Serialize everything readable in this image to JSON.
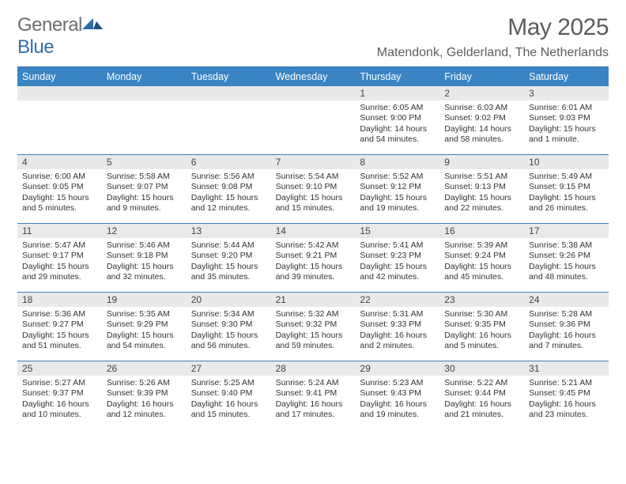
{
  "logo": {
    "text1": "General",
    "text2": "Blue"
  },
  "title": "May 2025",
  "location": "Matendonk, Gelderland, The Netherlands",
  "colors": {
    "header_bg": "#3b84c4",
    "border": "#3b7fbf",
    "daynum_bg": "#e8e9ea",
    "text": "#333333",
    "logo_gray": "#6b6f72",
    "logo_blue": "#2f6fa8"
  },
  "weekdays": [
    "Sunday",
    "Monday",
    "Tuesday",
    "Wednesday",
    "Thursday",
    "Friday",
    "Saturday"
  ],
  "weeks": [
    [
      {
        "n": "",
        "lines": []
      },
      {
        "n": "",
        "lines": []
      },
      {
        "n": "",
        "lines": []
      },
      {
        "n": "",
        "lines": []
      },
      {
        "n": "1",
        "lines": [
          "Sunrise: 6:05 AM",
          "Sunset: 9:00 PM",
          "Daylight: 14 hours",
          "and 54 minutes."
        ]
      },
      {
        "n": "2",
        "lines": [
          "Sunrise: 6:03 AM",
          "Sunset: 9:02 PM",
          "Daylight: 14 hours",
          "and 58 minutes."
        ]
      },
      {
        "n": "3",
        "lines": [
          "Sunrise: 6:01 AM",
          "Sunset: 9:03 PM",
          "Daylight: 15 hours",
          "and 1 minute."
        ]
      }
    ],
    [
      {
        "n": "4",
        "lines": [
          "Sunrise: 6:00 AM",
          "Sunset: 9:05 PM",
          "Daylight: 15 hours",
          "and 5 minutes."
        ]
      },
      {
        "n": "5",
        "lines": [
          "Sunrise: 5:58 AM",
          "Sunset: 9:07 PM",
          "Daylight: 15 hours",
          "and 9 minutes."
        ]
      },
      {
        "n": "6",
        "lines": [
          "Sunrise: 5:56 AM",
          "Sunset: 9:08 PM",
          "Daylight: 15 hours",
          "and 12 minutes."
        ]
      },
      {
        "n": "7",
        "lines": [
          "Sunrise: 5:54 AM",
          "Sunset: 9:10 PM",
          "Daylight: 15 hours",
          "and 15 minutes."
        ]
      },
      {
        "n": "8",
        "lines": [
          "Sunrise: 5:52 AM",
          "Sunset: 9:12 PM",
          "Daylight: 15 hours",
          "and 19 minutes."
        ]
      },
      {
        "n": "9",
        "lines": [
          "Sunrise: 5:51 AM",
          "Sunset: 9:13 PM",
          "Daylight: 15 hours",
          "and 22 minutes."
        ]
      },
      {
        "n": "10",
        "lines": [
          "Sunrise: 5:49 AM",
          "Sunset: 9:15 PM",
          "Daylight: 15 hours",
          "and 26 minutes."
        ]
      }
    ],
    [
      {
        "n": "11",
        "lines": [
          "Sunrise: 5:47 AM",
          "Sunset: 9:17 PM",
          "Daylight: 15 hours",
          "and 29 minutes."
        ]
      },
      {
        "n": "12",
        "lines": [
          "Sunrise: 5:46 AM",
          "Sunset: 9:18 PM",
          "Daylight: 15 hours",
          "and 32 minutes."
        ]
      },
      {
        "n": "13",
        "lines": [
          "Sunrise: 5:44 AM",
          "Sunset: 9:20 PM",
          "Daylight: 15 hours",
          "and 35 minutes."
        ]
      },
      {
        "n": "14",
        "lines": [
          "Sunrise: 5:42 AM",
          "Sunset: 9:21 PM",
          "Daylight: 15 hours",
          "and 39 minutes."
        ]
      },
      {
        "n": "15",
        "lines": [
          "Sunrise: 5:41 AM",
          "Sunset: 9:23 PM",
          "Daylight: 15 hours",
          "and 42 minutes."
        ]
      },
      {
        "n": "16",
        "lines": [
          "Sunrise: 5:39 AM",
          "Sunset: 9:24 PM",
          "Daylight: 15 hours",
          "and 45 minutes."
        ]
      },
      {
        "n": "17",
        "lines": [
          "Sunrise: 5:38 AM",
          "Sunset: 9:26 PM",
          "Daylight: 15 hours",
          "and 48 minutes."
        ]
      }
    ],
    [
      {
        "n": "18",
        "lines": [
          "Sunrise: 5:36 AM",
          "Sunset: 9:27 PM",
          "Daylight: 15 hours",
          "and 51 minutes."
        ]
      },
      {
        "n": "19",
        "lines": [
          "Sunrise: 5:35 AM",
          "Sunset: 9:29 PM",
          "Daylight: 15 hours",
          "and 54 minutes."
        ]
      },
      {
        "n": "20",
        "lines": [
          "Sunrise: 5:34 AM",
          "Sunset: 9:30 PM",
          "Daylight: 15 hours",
          "and 56 minutes."
        ]
      },
      {
        "n": "21",
        "lines": [
          "Sunrise: 5:32 AM",
          "Sunset: 9:32 PM",
          "Daylight: 15 hours",
          "and 59 minutes."
        ]
      },
      {
        "n": "22",
        "lines": [
          "Sunrise: 5:31 AM",
          "Sunset: 9:33 PM",
          "Daylight: 16 hours",
          "and 2 minutes."
        ]
      },
      {
        "n": "23",
        "lines": [
          "Sunrise: 5:30 AM",
          "Sunset: 9:35 PM",
          "Daylight: 16 hours",
          "and 5 minutes."
        ]
      },
      {
        "n": "24",
        "lines": [
          "Sunrise: 5:28 AM",
          "Sunset: 9:36 PM",
          "Daylight: 16 hours",
          "and 7 minutes."
        ]
      }
    ],
    [
      {
        "n": "25",
        "lines": [
          "Sunrise: 5:27 AM",
          "Sunset: 9:37 PM",
          "Daylight: 16 hours",
          "and 10 minutes."
        ]
      },
      {
        "n": "26",
        "lines": [
          "Sunrise: 5:26 AM",
          "Sunset: 9:39 PM",
          "Daylight: 16 hours",
          "and 12 minutes."
        ]
      },
      {
        "n": "27",
        "lines": [
          "Sunrise: 5:25 AM",
          "Sunset: 9:40 PM",
          "Daylight: 16 hours",
          "and 15 minutes."
        ]
      },
      {
        "n": "28",
        "lines": [
          "Sunrise: 5:24 AM",
          "Sunset: 9:41 PM",
          "Daylight: 16 hours",
          "and 17 minutes."
        ]
      },
      {
        "n": "29",
        "lines": [
          "Sunrise: 5:23 AM",
          "Sunset: 9:43 PM",
          "Daylight: 16 hours",
          "and 19 minutes."
        ]
      },
      {
        "n": "30",
        "lines": [
          "Sunrise: 5:22 AM",
          "Sunset: 9:44 PM",
          "Daylight: 16 hours",
          "and 21 minutes."
        ]
      },
      {
        "n": "31",
        "lines": [
          "Sunrise: 5:21 AM",
          "Sunset: 9:45 PM",
          "Daylight: 16 hours",
          "and 23 minutes."
        ]
      }
    ]
  ]
}
